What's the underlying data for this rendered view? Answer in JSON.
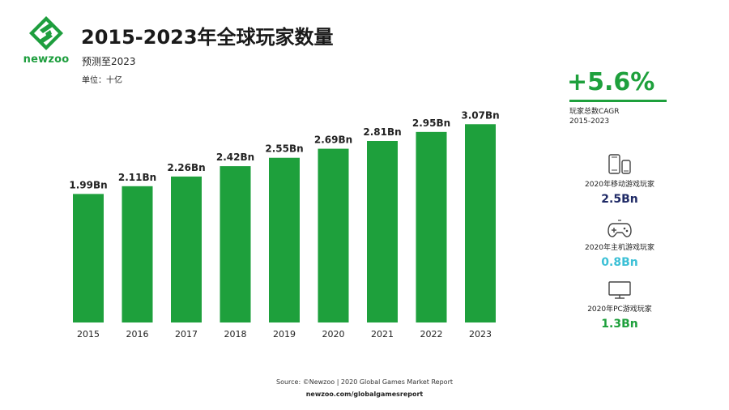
{
  "header": {
    "logo_text": "newzoo",
    "title": "2015-2023年全球玩家数量",
    "subtitle": "预测至2023",
    "unit": "单位：十亿"
  },
  "chart_data": {
    "type": "bar",
    "categories": [
      "2015",
      "2016",
      "2017",
      "2018",
      "2019",
      "2020",
      "2021",
      "2022",
      "2023"
    ],
    "values": [
      1.99,
      2.11,
      2.26,
      2.42,
      2.55,
      2.69,
      2.81,
      2.95,
      3.07
    ],
    "data_labels": [
      "1.99Bn",
      "2.11Bn",
      "2.26Bn",
      "2.42Bn",
      "2.55Bn",
      "2.69Bn",
      "2.81Bn",
      "2.95Bn",
      "3.07Bn"
    ],
    "title": "2015-2023年全球玩家数量",
    "subtitle": "预测至2023",
    "unit_label": "单位：十亿",
    "bar_color": "#1ea03c",
    "ylim": [
      0,
      3.5
    ],
    "grid": false
  },
  "side": {
    "cagr_value": "+5.6%",
    "cagr_label": "玩家总数CAGR",
    "cagr_period": "2015-2023",
    "stats": [
      {
        "icon": "mobile-icon",
        "label": "2020年移动游戏玩家",
        "value": "2.5Bn",
        "color": "#1f2a66"
      },
      {
        "icon": "gamepad-icon",
        "label": "2020年主机游戏玩家",
        "value": "0.8Bn",
        "color": "#3cc0d6"
      },
      {
        "icon": "monitor-icon",
        "label": "2020年PC游戏玩家",
        "value": "1.3Bn",
        "color": "#1ea03c"
      }
    ]
  },
  "footer": {
    "source": "Source: ©Newzoo | 2020 Global Games Market Report",
    "link": "newzoo.com/globalgamesreport"
  }
}
